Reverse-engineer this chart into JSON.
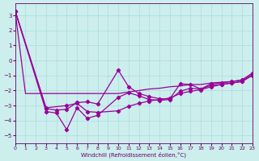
{
  "xlabel": "Windchill (Refroidissement éolien,°C)",
  "bg_color": "#cceeed",
  "grid_color": "#aadddd",
  "line_color": "#990099",
  "xlim": [
    0,
    23
  ],
  "ylim": [
    -5.5,
    3.8
  ],
  "yticks": [
    3,
    2,
    1,
    0,
    -1,
    -2,
    -3,
    -4,
    -5
  ],
  "xticks": [
    0,
    1,
    2,
    3,
    4,
    5,
    6,
    7,
    8,
    9,
    10,
    11,
    12,
    13,
    14,
    15,
    16,
    17,
    18,
    19,
    20,
    21,
    22,
    23
  ],
  "lines": [
    {
      "x": [
        0,
        1,
        2,
        3,
        4,
        5,
        6,
        7,
        8,
        9,
        10,
        11,
        12,
        13,
        14,
        15,
        16,
        17,
        18,
        19,
        20,
        21,
        22,
        23
      ],
      "y": [
        3.3,
        -2.2,
        -2.2,
        -2.2,
        -2.2,
        -2.2,
        -2.2,
        -2.2,
        -2.2,
        -2.2,
        -2.2,
        -2.1,
        -2.0,
        -1.9,
        -1.85,
        -1.75,
        -1.7,
        -1.6,
        -1.6,
        -1.5,
        -1.45,
        -1.4,
        -1.3,
        -0.85
      ],
      "markers": false
    },
    {
      "x": [
        0,
        3,
        4,
        5,
        6,
        7,
        8,
        10,
        11,
        12,
        13,
        14,
        15,
        16,
        17,
        18,
        19,
        20,
        21,
        22,
        23
      ],
      "y": [
        3.3,
        -3.2,
        -3.3,
        -3.25,
        -2.8,
        -2.75,
        -2.9,
        -0.65,
        -1.75,
        -2.2,
        -2.4,
        -2.55,
        -2.55,
        -1.55,
        -1.6,
        -1.9,
        -1.55,
        -1.5,
        -1.4,
        -1.3,
        -0.85
      ],
      "markers": true
    },
    {
      "x": [
        0,
        3,
        5,
        6,
        7,
        8,
        10,
        11,
        12,
        13,
        14,
        15,
        16,
        17,
        18,
        19,
        20,
        21,
        22,
        23
      ],
      "y": [
        3.3,
        -3.15,
        -3.0,
        -2.85,
        -3.4,
        -3.45,
        -3.35,
        -3.05,
        -2.85,
        -2.7,
        -2.6,
        -2.5,
        -2.2,
        -2.05,
        -1.95,
        -1.75,
        -1.6,
        -1.5,
        -1.4,
        -0.95
      ],
      "markers": true
    },
    {
      "x": [
        0,
        3,
        4,
        5,
        6,
        7,
        8,
        10,
        11,
        12,
        13,
        14,
        15,
        16,
        17,
        18,
        19,
        20,
        21,
        22,
        23
      ],
      "y": [
        3.3,
        -3.4,
        -3.5,
        -4.6,
        -3.15,
        -3.85,
        -3.65,
        -2.45,
        -2.15,
        -2.35,
        -2.6,
        -2.65,
        -2.6,
        -2.05,
        -1.85,
        -1.9,
        -1.65,
        -1.6,
        -1.5,
        -1.4,
        -1.0
      ],
      "markers": true
    }
  ]
}
